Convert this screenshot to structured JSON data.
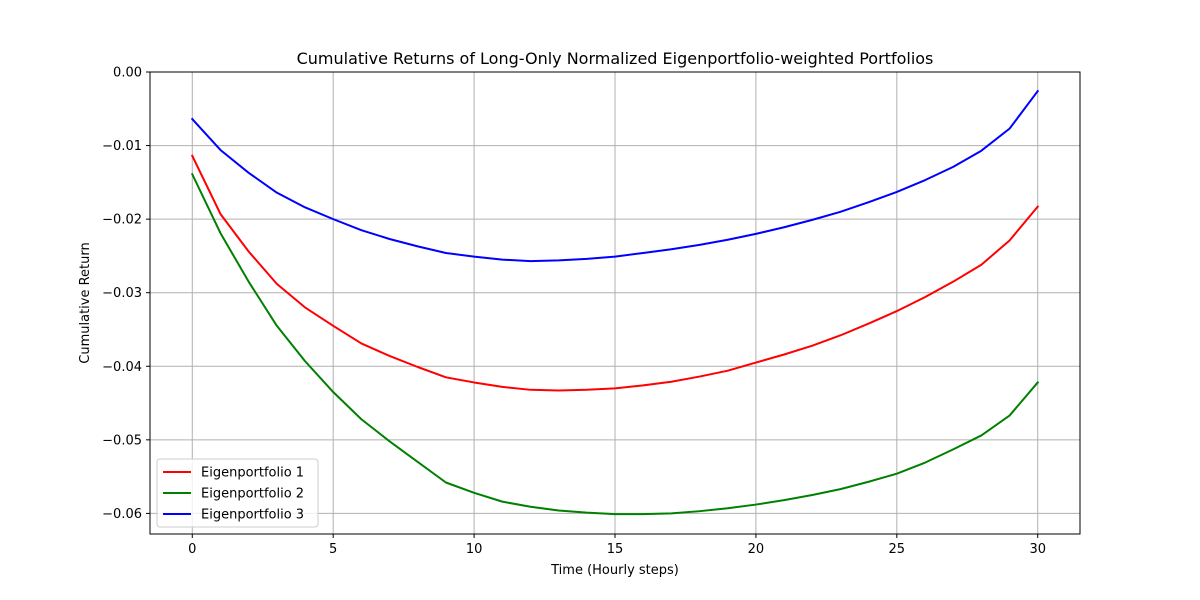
{
  "chart_data": {
    "type": "line",
    "title": "Cumulative Returns of Long-Only Normalized Eigenportfolio-weighted Portfolios",
    "xlabel": "Time (Hourly steps)",
    "ylabel": "Cumulative Return",
    "xlim": [
      -1.5,
      31.5
    ],
    "ylim": [
      -0.0628,
      0.0
    ],
    "xticks": [
      0,
      5,
      10,
      15,
      20,
      25,
      30
    ],
    "xtick_labels": [
      "0",
      "5",
      "10",
      "15",
      "20",
      "25",
      "30"
    ],
    "yticks": [
      0.0,
      -0.01,
      -0.02,
      -0.03,
      -0.04,
      -0.05,
      -0.06
    ],
    "ytick_labels": [
      "0.00",
      "−0.01",
      "−0.02",
      "−0.03",
      "−0.04",
      "−0.05",
      "−0.06"
    ],
    "grid": true,
    "legend_position": "lower-left",
    "x": [
      0,
      1,
      2,
      3,
      4,
      5,
      6,
      7,
      8,
      9,
      10,
      11,
      12,
      13,
      14,
      15,
      16,
      17,
      18,
      19,
      20,
      21,
      22,
      23,
      24,
      25,
      26,
      27,
      28,
      29,
      30
    ],
    "series": [
      {
        "name": "Eigenportfolio 1",
        "color": "#ff0000",
        "values": [
          -0.0114,
          -0.0193,
          -0.0244,
          -0.0288,
          -0.032,
          -0.0345,
          -0.0369,
          -0.0386,
          -0.0401,
          -0.0415,
          -0.0422,
          -0.0428,
          -0.0432,
          -0.0433,
          -0.0432,
          -0.043,
          -0.0426,
          -0.0421,
          -0.0414,
          -0.0406,
          -0.0395,
          -0.0384,
          -0.0372,
          -0.0358,
          -0.0342,
          -0.0325,
          -0.0306,
          -0.0285,
          -0.0262,
          -0.0229,
          -0.0183
        ]
      },
      {
        "name": "Eigenportfolio 2",
        "color": "#008000",
        "values": [
          -0.0139,
          -0.0219,
          -0.0285,
          -0.0345,
          -0.0393,
          -0.0435,
          -0.0472,
          -0.0502,
          -0.053,
          -0.0558,
          -0.0572,
          -0.0584,
          -0.0591,
          -0.0596,
          -0.0599,
          -0.0601,
          -0.0601,
          -0.06,
          -0.0597,
          -0.0593,
          -0.0588,
          -0.0582,
          -0.0575,
          -0.0567,
          -0.0557,
          -0.0546,
          -0.0531,
          -0.0513,
          -0.0494,
          -0.0467,
          -0.0422
        ]
      },
      {
        "name": "Eigenportfolio 3",
        "color": "#0000ff",
        "values": [
          -0.0064,
          -0.0106,
          -0.0137,
          -0.0164,
          -0.0184,
          -0.02,
          -0.0215,
          -0.0227,
          -0.0237,
          -0.0246,
          -0.0251,
          -0.0255,
          -0.0257,
          -0.0256,
          -0.0254,
          -0.0251,
          -0.0246,
          -0.0241,
          -0.0235,
          -0.0228,
          -0.022,
          -0.0211,
          -0.0201,
          -0.019,
          -0.0177,
          -0.0163,
          -0.0147,
          -0.0129,
          -0.0107,
          -0.0077,
          -0.0026
        ]
      }
    ]
  }
}
